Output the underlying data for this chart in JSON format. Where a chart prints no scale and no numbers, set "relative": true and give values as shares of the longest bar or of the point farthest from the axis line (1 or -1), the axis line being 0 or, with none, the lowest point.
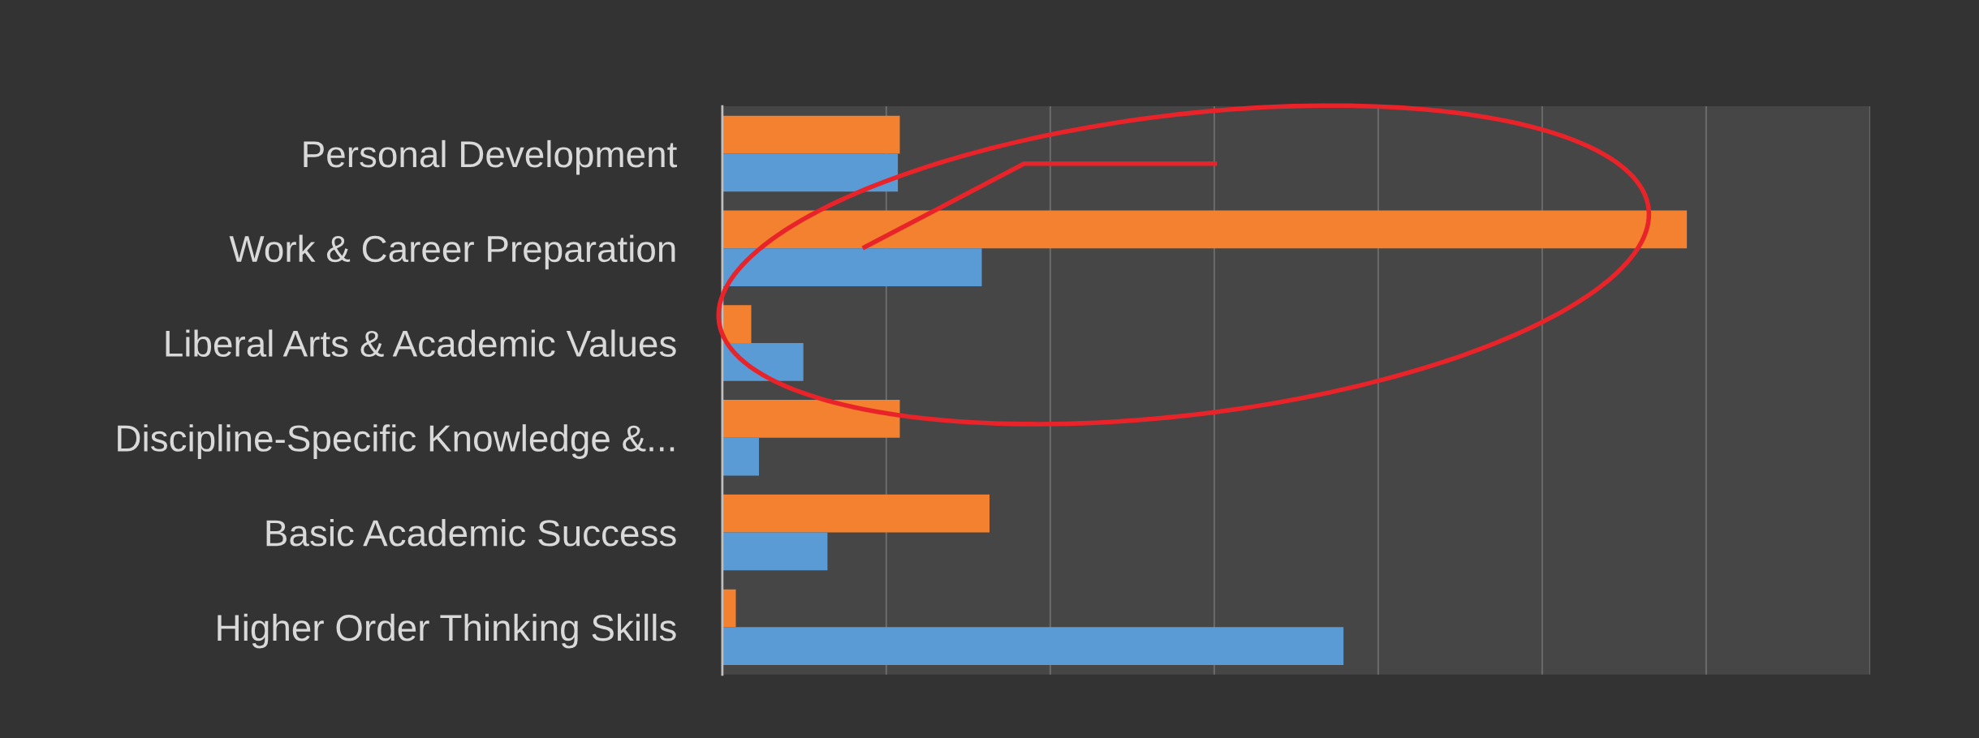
{
  "chart_data": {
    "type": "bar",
    "orientation": "horizontal",
    "relative": true,
    "grid": "x",
    "legend": false,
    "categories": [
      "Personal Development",
      "Work & Career Preparation",
      "Liberal Arts & Academic Values",
      "Discipline-Specific Knowledge &...",
      "Basic Academic Success",
      "Higher Order Thinking Skills"
    ],
    "series": [
      {
        "color": "#f4812f",
        "values": [
          0.184,
          1,
          0.03,
          0.184,
          0.277,
          0.014
        ]
      },
      {
        "color": "#5b9bd5",
        "values": [
          0.182,
          0.269,
          0.084,
          0.038,
          0.109,
          0.644
        ]
      }
    ]
  }
}
